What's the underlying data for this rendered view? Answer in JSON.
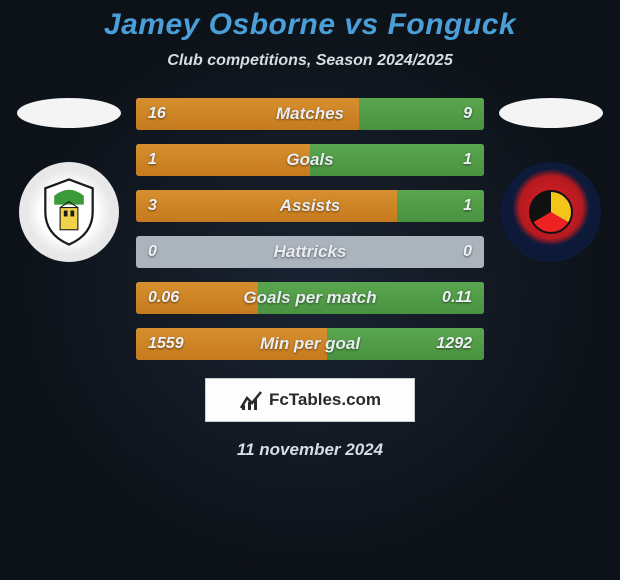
{
  "title": "Jamey Osborne vs Fonguck",
  "subtitle": "Club competitions, Season 2024/2025",
  "date": "11 november 2024",
  "footer_label": "FcTables.com",
  "colors": {
    "title": "#4a9fd8",
    "text": "#d8dde4",
    "bar_left": "#c67a1e",
    "bar_right": "#4a9240",
    "bar_bg": "#abb3bd",
    "background_center": "#1a2332",
    "background_edge": "#0d1218"
  },
  "stats": [
    {
      "label": "Matches",
      "left_val": "16",
      "right_val": "9",
      "left_pct": 64,
      "right_pct": 36
    },
    {
      "label": "Goals",
      "left_val": "1",
      "right_val": "1",
      "left_pct": 50,
      "right_pct": 50
    },
    {
      "label": "Assists",
      "left_val": "3",
      "right_val": "1",
      "left_pct": 75,
      "right_pct": 25
    },
    {
      "label": "Hattricks",
      "left_val": "0",
      "right_val": "0",
      "left_pct": 0,
      "right_pct": 0
    },
    {
      "label": "Goals per match",
      "left_val": "0.06",
      "right_val": "0.11",
      "left_pct": 35,
      "right_pct": 65
    },
    {
      "label": "Min per goal",
      "left_val": "1559",
      "right_val": "1292",
      "left_pct": 55,
      "right_pct": 45
    }
  ]
}
